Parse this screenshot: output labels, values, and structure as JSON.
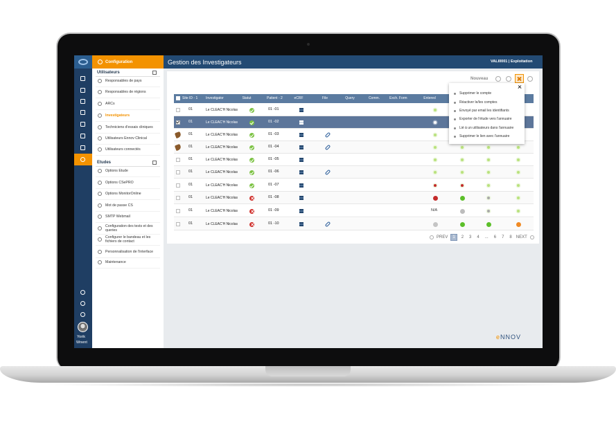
{
  "sidebar": {
    "user_first": "Yorik",
    "user_last": "Wnent"
  },
  "menu": {
    "title": "Configuration",
    "sections": [
      {
        "title": "Utilisateurs",
        "active": 3,
        "items": [
          "Responsables de pays",
          "Responsables de régions",
          "ARCs",
          "Investigateurs",
          "Techniciens d'essais cliniques",
          "Utilisateurs Ennov Clinical",
          "Utilisateurs connectés"
        ]
      },
      {
        "title": "Etudes",
        "items": [
          "Options Etude",
          "Options CSePRO",
          "Options MonitorOnline",
          "Mot de passe CS",
          "SMTP Webmail",
          "Configuration des tests et des queries",
          "Configurer le bandeau et les fichiers de contact",
          "Personnalisation de l'interface",
          "Maintenance"
        ]
      }
    ]
  },
  "header": {
    "title": "Gestion des Investigateurs",
    "context": "VALI0001 | Exploitation"
  },
  "toolbar": {
    "new": "Nouveau"
  },
  "dropdown": {
    "items": [
      "Supprimer le compte",
      "Réactiver le/les comptes",
      "Envoyé par email les identifiants",
      "Exporter de l'étude vers l'annuaire",
      "Lié à un utilisateurs dans l'annuaire",
      "Supprimer le lien avec l'annuaire"
    ]
  },
  "table": {
    "selected_row": 1,
    "columns": [
      "Site ID - 1",
      "Investigator",
      "Statut",
      "Patient - 2",
      "eCRF",
      "File",
      "Query",
      "Comm.",
      "Exch. Form",
      "Entered"
    ],
    "rows": [
      {
        "site": "01",
        "investigator": "Le CLEAC'H Nicolas",
        "status": "valid",
        "patient": "01 -01",
        "file": false,
        "dots": [
          {
            "color": "#b9e27d",
            "size": "small"
          }
        ]
      },
      {
        "site": "01",
        "investigator": "Le CLEAC'H Nicolas",
        "status": "valid",
        "patient": "01 -02",
        "file": false,
        "checked": true,
        "dots": [
          {
            "color": "#ffffff",
            "size": "small"
          }
        ]
      },
      {
        "site": "01",
        "investigator": "Le CLEAC'H Nicolas",
        "status": "valid",
        "patient": "01 -03",
        "file": true,
        "locked": true,
        "dots": [
          {
            "color": "#b9e27d",
            "size": "small"
          }
        ]
      },
      {
        "site": "01",
        "investigator": "Le CLEAC'H Nicolas",
        "status": "valid",
        "patient": "01 -04",
        "file": true,
        "locked": true,
        "dots": [
          {
            "color": "#b9e27d",
            "size": "small"
          },
          {
            "color": "#b9e27d",
            "size": "small"
          },
          {
            "color": "#b9e27d",
            "size": "small"
          },
          {
            "color": "#b9e27d",
            "size": "small"
          }
        ]
      },
      {
        "site": "01",
        "investigator": "Le CLEAC'H Nicolas",
        "status": "valid",
        "patient": "01 -05",
        "file": false,
        "dots": [
          {
            "color": "#b9e27d",
            "size": "small"
          },
          {
            "color": "#b9e27d",
            "size": "small"
          },
          {
            "color": "#b9e27d",
            "size": "small"
          },
          {
            "color": "#b9e27d",
            "size": "small"
          }
        ]
      },
      {
        "site": "01",
        "investigator": "Le CLEAC'H Nicolas",
        "status": "valid",
        "patient": "01 -06",
        "file": true,
        "dots": [
          {
            "color": "#b9e27d",
            "size": "small"
          },
          {
            "color": "#b9e27d",
            "size": "small"
          },
          {
            "color": "#b9e27d",
            "size": "small"
          },
          {
            "color": "#b9e27d",
            "size": "small"
          }
        ]
      },
      {
        "site": "01",
        "investigator": "Le CLEAC'H Nicolas",
        "status": "valid",
        "patient": "01 -07",
        "file": false,
        "dots": [
          {
            "color": "#c42b2b",
            "size": "small"
          },
          {
            "color": "#c42b2b",
            "size": "small"
          },
          {
            "color": "#b9e27d",
            "size": "small"
          },
          {
            "color": "#b9e27d",
            "size": "small"
          }
        ]
      },
      {
        "site": "01",
        "investigator": "Le CLEAC'H Nicolas",
        "status": "invalid",
        "patient": "01 -08",
        "file": false,
        "dots": [
          {
            "color": "#c42b2b",
            "size": "large"
          },
          {
            "color": "#5cbf2a",
            "size": "large"
          },
          {
            "color": "#a9a9a9",
            "size": "small"
          },
          {
            "color": "#b9e27d",
            "size": "small"
          }
        ]
      },
      {
        "site": "01",
        "investigator": "Le CLEAC'H Nicolas",
        "status": "invalid",
        "patient": "01 -09",
        "file": false,
        "entered_label": "N/A",
        "dots": [
          null,
          {
            "color": "#bdbdbd",
            "size": "large"
          },
          {
            "color": "#a9a9a9",
            "size": "small"
          },
          {
            "color": "#b9e27d",
            "size": "small"
          }
        ]
      },
      {
        "site": "01",
        "investigator": "Le CLEAC'H Nicolas",
        "status": "invalid",
        "patient": "01 -10",
        "file": true,
        "dots": [
          {
            "color": "#c4c4c4",
            "size": "large"
          },
          {
            "color": "#5cbf2a",
            "size": "large"
          },
          {
            "color": "#5cbf2a",
            "size": "large"
          },
          {
            "color": "#f08a24",
            "size": "large"
          }
        ]
      }
    ]
  },
  "pagination": {
    "prev": "PREV",
    "pages": [
      "1",
      "2",
      "3",
      "4",
      "...",
      "6",
      "7",
      "8"
    ],
    "current": 0,
    "next": "NEXT"
  },
  "logo": "eNNOV"
}
